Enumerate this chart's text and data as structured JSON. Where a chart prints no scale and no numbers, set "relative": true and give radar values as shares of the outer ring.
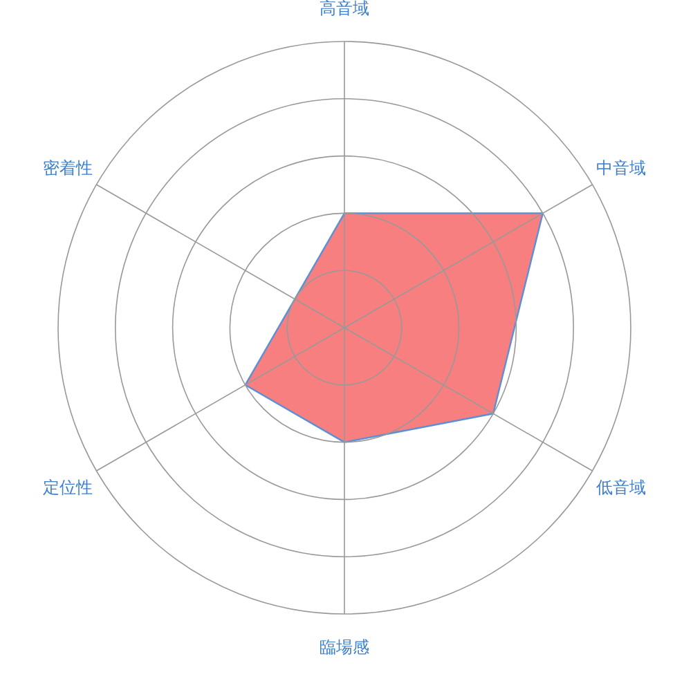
{
  "chart_data": {
    "type": "radar",
    "relative": true,
    "grid": true,
    "categories": [
      "高音域",
      "中音域",
      "低音域",
      "臨場感",
      "定位性",
      "密着性"
    ],
    "series": [
      {
        "color": "#f77f7f",
        "values": [
          0.4,
          0.8,
          0.6,
          0.4,
          0.4,
          0.2
        ]
      }
    ]
  }
}
